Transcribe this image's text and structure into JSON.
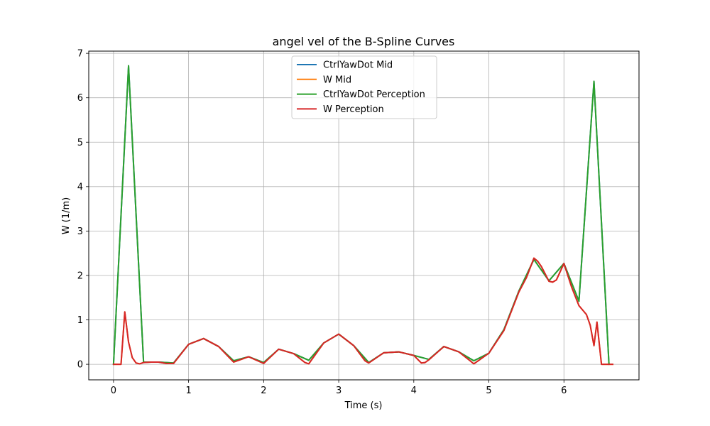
{
  "chart_data": {
    "type": "line",
    "title": "angel vel of the B-Spline Curves",
    "xlabel": "Time (s)",
    "ylabel": "W (1/m)",
    "xlim": [
      -0.33,
      7.0
    ],
    "ylim": [
      -0.35,
      7.05
    ],
    "xticks": [
      0,
      1,
      2,
      3,
      4,
      5,
      6
    ],
    "yticks": [
      0,
      1,
      2,
      3,
      4,
      5,
      6,
      7
    ],
    "grid": true,
    "legend_position": "upper center",
    "series": [
      {
        "name": "CtrlYawDot Mid",
        "color": "#1f77b4",
        "x": [
          0,
          0.2,
          0.4,
          0.6,
          0.8,
          1.0,
          1.2,
          1.4,
          1.6,
          1.8,
          2.0,
          2.2,
          2.4,
          2.6,
          2.8,
          3.0,
          3.2,
          3.4,
          3.6,
          3.8,
          4.0,
          4.2,
          4.4,
          4.6,
          4.8,
          5.0,
          5.2,
          5.4,
          5.6,
          5.8,
          6.0,
          6.2,
          6.4,
          6.6
        ],
        "y": [
          0,
          6.72,
          0.05,
          0.05,
          0.03,
          0.45,
          0.58,
          0.4,
          0.08,
          0.17,
          0.04,
          0.34,
          0.24,
          0.09,
          0.48,
          0.68,
          0.42,
          0.04,
          0.26,
          0.28,
          0.2,
          0.11,
          0.4,
          0.28,
          0.08,
          0.25,
          0.78,
          1.65,
          2.36,
          1.88,
          2.27,
          1.42,
          6.37,
          0
        ]
      },
      {
        "name": "W Mid",
        "color": "#ff7f0e",
        "x": [
          0,
          0.1,
          0.15,
          0.2,
          0.25,
          0.3,
          0.35,
          0.4,
          0.5,
          0.6,
          0.7,
          0.8,
          1.0,
          1.2,
          1.4,
          1.6,
          1.8,
          2.0,
          2.2,
          2.4,
          2.55,
          2.6,
          2.8,
          3.0,
          3.2,
          3.35,
          3.4,
          3.6,
          3.8,
          4.0,
          4.1,
          4.15,
          4.2,
          4.4,
          4.6,
          4.75,
          4.8,
          5.0,
          5.2,
          5.4,
          5.5,
          5.6,
          5.65,
          5.7,
          5.8,
          5.85,
          5.9,
          6.0,
          6.1,
          6.2,
          6.3,
          6.35,
          6.4,
          6.44,
          6.5,
          6.6,
          6.65
        ],
        "y": [
          0,
          0,
          1.18,
          0.5,
          0.15,
          0.03,
          0.01,
          0.04,
          0.05,
          0.05,
          0.02,
          0.02,
          0.45,
          0.58,
          0.4,
          0.05,
          0.17,
          0.02,
          0.34,
          0.24,
          0.04,
          0.01,
          0.48,
          0.68,
          0.42,
          0.08,
          0.03,
          0.26,
          0.28,
          0.2,
          0.03,
          0.04,
          0.1,
          0.4,
          0.28,
          0.08,
          0.01,
          0.25,
          0.76,
          1.63,
          1.95,
          2.39,
          2.32,
          2.2,
          1.87,
          1.85,
          1.9,
          2.27,
          1.75,
          1.32,
          1.12,
          0.88,
          0.42,
          0.95,
          0,
          0,
          0
        ]
      },
      {
        "name": "CtrlYawDot Perception",
        "color": "#2ca02c",
        "x": [
          0,
          0.2,
          0.4,
          0.6,
          0.8,
          1.0,
          1.2,
          1.4,
          1.6,
          1.8,
          2.0,
          2.2,
          2.4,
          2.6,
          2.8,
          3.0,
          3.2,
          3.4,
          3.6,
          3.8,
          4.0,
          4.2,
          4.4,
          4.6,
          4.8,
          5.0,
          5.2,
          5.4,
          5.6,
          5.8,
          6.0,
          6.2,
          6.4,
          6.6
        ],
        "y": [
          0,
          6.72,
          0.05,
          0.05,
          0.03,
          0.45,
          0.58,
          0.4,
          0.08,
          0.17,
          0.04,
          0.34,
          0.24,
          0.09,
          0.48,
          0.68,
          0.42,
          0.04,
          0.26,
          0.28,
          0.2,
          0.11,
          0.4,
          0.28,
          0.08,
          0.25,
          0.78,
          1.65,
          2.36,
          1.88,
          2.27,
          1.42,
          6.37,
          0
        ]
      },
      {
        "name": "W Perception",
        "color": "#d62728",
        "x": [
          0,
          0.1,
          0.15,
          0.2,
          0.25,
          0.3,
          0.35,
          0.4,
          0.5,
          0.6,
          0.7,
          0.8,
          1.0,
          1.2,
          1.4,
          1.6,
          1.8,
          2.0,
          2.2,
          2.4,
          2.55,
          2.6,
          2.8,
          3.0,
          3.2,
          3.35,
          3.4,
          3.6,
          3.8,
          4.0,
          4.1,
          4.15,
          4.2,
          4.4,
          4.6,
          4.75,
          4.8,
          5.0,
          5.2,
          5.4,
          5.5,
          5.6,
          5.65,
          5.7,
          5.8,
          5.85,
          5.9,
          6.0,
          6.1,
          6.2,
          6.3,
          6.35,
          6.4,
          6.44,
          6.5,
          6.6,
          6.65
        ],
        "y": [
          0,
          0,
          1.18,
          0.5,
          0.15,
          0.03,
          0.01,
          0.04,
          0.05,
          0.05,
          0.02,
          0.02,
          0.45,
          0.58,
          0.4,
          0.05,
          0.17,
          0.02,
          0.34,
          0.24,
          0.04,
          0.01,
          0.48,
          0.68,
          0.42,
          0.08,
          0.03,
          0.26,
          0.28,
          0.2,
          0.03,
          0.04,
          0.1,
          0.4,
          0.28,
          0.08,
          0.01,
          0.25,
          0.76,
          1.63,
          1.95,
          2.39,
          2.32,
          2.2,
          1.87,
          1.85,
          1.9,
          2.27,
          1.75,
          1.32,
          1.12,
          0.88,
          0.42,
          0.95,
          0,
          0,
          0
        ]
      }
    ]
  }
}
